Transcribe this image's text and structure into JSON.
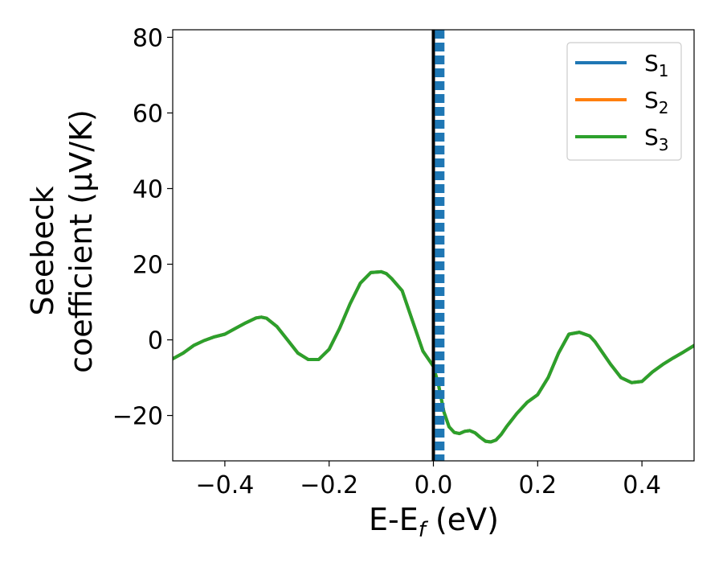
{
  "chart_data": {
    "type": "line",
    "title": "",
    "xlabel": {
      "main": "E-E",
      "sub": "f",
      "tail": " (eV)"
    },
    "ylabel": {
      "line1": "Seebeck",
      "line2": "coefficient  (μV/K)"
    },
    "xlim": [
      -0.5,
      0.5
    ],
    "ylim": [
      -32,
      82
    ],
    "xticks": [
      -0.4,
      -0.2,
      0.0,
      0.2,
      0.4
    ],
    "xtick_labels": [
      "−0.4",
      "−0.2",
      "0.0",
      "0.2",
      "0.4"
    ],
    "yticks": [
      -20,
      0,
      20,
      40,
      60,
      80
    ],
    "ytick_labels": [
      "−20",
      "0",
      "20",
      "40",
      "60",
      "80"
    ],
    "grid": false,
    "legend_position": "top-right",
    "legend": [
      {
        "base": "S",
        "sub": "1",
        "color": "#1f77b4"
      },
      {
        "base": "S",
        "sub": "2",
        "color": "#ff7f0e"
      },
      {
        "base": "S",
        "sub": "3",
        "color": "#2ca02c"
      }
    ],
    "x": [
      -0.5,
      -0.48,
      -0.46,
      -0.44,
      -0.42,
      -0.4,
      -0.38,
      -0.36,
      -0.34,
      -0.33,
      -0.32,
      -0.3,
      -0.28,
      -0.26,
      -0.24,
      -0.22,
      -0.2,
      -0.18,
      -0.16,
      -0.14,
      -0.12,
      -0.1,
      -0.09,
      -0.08,
      -0.06,
      -0.04,
      -0.02,
      0.0,
      0.01,
      0.02,
      0.03,
      0.04,
      0.05,
      0.06,
      0.07,
      0.08,
      0.09,
      0.1,
      0.11,
      0.12,
      0.13,
      0.14,
      0.16,
      0.18,
      0.2,
      0.22,
      0.24,
      0.26,
      0.28,
      0.3,
      0.31,
      0.32,
      0.34,
      0.36,
      0.38,
      0.4,
      0.42,
      0.44,
      0.46,
      0.48,
      0.5
    ],
    "series": [
      {
        "name": "S1",
        "color": "#1f77b4",
        "values": [
          -5,
          -3.5,
          -1.5,
          -0.2,
          0.8,
          1.5,
          3,
          4.5,
          5.8,
          6,
          5.7,
          3.5,
          0,
          -3.5,
          -5.2,
          -5.2,
          -2.5,
          3,
          9.5,
          15,
          17.8,
          18,
          17.5,
          16.2,
          13,
          5,
          -3,
          -7,
          -12,
          -19,
          -23,
          -24.5,
          -24.8,
          -24.2,
          -24,
          -24.6,
          -25.8,
          -26.8,
          -27,
          -26.5,
          -25,
          -23,
          -19.5,
          -16.5,
          -14.5,
          -10,
          -3.5,
          1.5,
          2,
          1,
          -0.5,
          -2.5,
          -6.5,
          -10,
          -11.3,
          -11,
          -8.5,
          -6.5,
          -4.8,
          -3.2,
          -1.5
        ]
      },
      {
        "name": "S2",
        "color": "#ff7f0e",
        "values": [
          -5,
          -3.5,
          -1.5,
          -0.2,
          0.8,
          1.5,
          3,
          4.5,
          5.8,
          6,
          5.7,
          3.5,
          0,
          -3.5,
          -5.2,
          -5.2,
          -2.5,
          3,
          9.5,
          15,
          17.8,
          18,
          17.5,
          16.2,
          13,
          5,
          -3,
          -7,
          -12,
          -19,
          -23,
          -24.5,
          -24.8,
          -24.2,
          -24,
          -24.6,
          -25.8,
          -26.8,
          -27,
          -26.5,
          -25,
          -23,
          -19.5,
          -16.5,
          -14.5,
          -10,
          -3.5,
          1.5,
          2,
          1,
          -0.5,
          -2.5,
          -6.5,
          -10,
          -11.3,
          -11,
          -8.5,
          -6.5,
          -4.8,
          -3.2,
          -1.5
        ]
      },
      {
        "name": "S3",
        "color": "#2ca02c",
        "values": [
          -5,
          -3.5,
          -1.5,
          -0.2,
          0.8,
          1.5,
          3,
          4.5,
          5.8,
          6,
          5.7,
          3.5,
          0,
          -3.5,
          -5.2,
          -5.2,
          -2.5,
          3,
          9.5,
          15,
          17.8,
          18,
          17.5,
          16.2,
          13,
          5,
          -3,
          -7,
          -12,
          -19,
          -23,
          -24.5,
          -24.8,
          -24.2,
          -24,
          -24.6,
          -25.8,
          -26.8,
          -27,
          -26.5,
          -25,
          -23,
          -19.5,
          -16.5,
          -14.5,
          -10,
          -3.5,
          1.5,
          2,
          1,
          -0.5,
          -2.5,
          -6.5,
          -10,
          -11.3,
          -11,
          -8.5,
          -6.5,
          -4.8,
          -3.2,
          -1.5
        ]
      }
    ],
    "vertical_lines": [
      {
        "x": 0.0,
        "color": "#000000",
        "style": "solid"
      },
      {
        "x": 0.012,
        "color": "#1f77b4",
        "style": "dashed"
      }
    ]
  }
}
